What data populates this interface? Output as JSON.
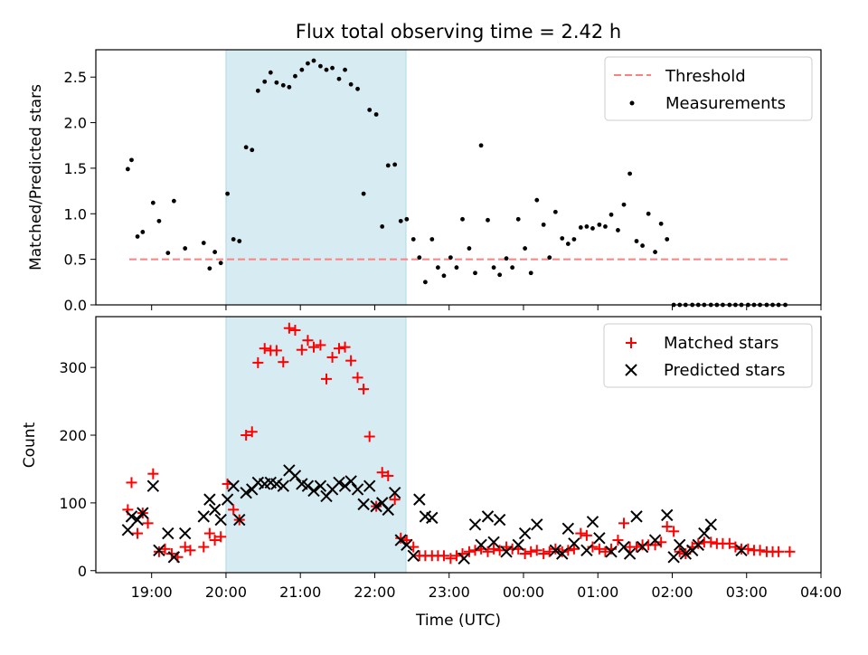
{
  "chart_data": [
    {
      "type": "scatter",
      "title": "Flux total observing time = 2.42 h",
      "xlabel": "",
      "ylabel": "Matched/Predicted stars",
      "ylim": [
        0,
        2.8
      ],
      "yticks": [
        0.0,
        0.5,
        1.0,
        1.5,
        2.0,
        2.5
      ],
      "ytick_labels": [
        "0.0",
        "0.5",
        "1.0",
        "1.5",
        "2.0",
        "2.5"
      ],
      "xlim_hours": [
        18.25,
        28.0
      ],
      "shaded_interval": [
        20.0,
        22.42
      ],
      "shade_color": "#add8e6",
      "threshold": {
        "name": "Threshold",
        "value": 0.5,
        "x_range": [
          18.7,
          27.58
        ],
        "color": "#ff7f7f"
      },
      "legend": {
        "placement": "top-right",
        "entries": [
          "Threshold",
          "Measurements"
        ]
      },
      "series": [
        {
          "name": "Measurements",
          "color": "#000000",
          "x": [
            18.68,
            18.73,
            18.81,
            18.88,
            19.02,
            19.1,
            19.22,
            19.3,
            19.45,
            19.7,
            19.78,
            19.85,
            19.93,
            20.02,
            20.1,
            20.18,
            20.27,
            20.35,
            20.43,
            20.52,
            20.6,
            20.68,
            20.77,
            20.85,
            20.93,
            21.02,
            21.1,
            21.18,
            21.27,
            21.35,
            21.43,
            21.52,
            21.6,
            21.68,
            21.77,
            21.85,
            21.93,
            22.02,
            22.1,
            22.18,
            22.27,
            22.35,
            22.43,
            22.52,
            22.6,
            22.68,
            22.77,
            22.85,
            22.93,
            23.02,
            23.1,
            23.18,
            23.27,
            23.35,
            23.43,
            23.52,
            23.6,
            23.68,
            23.77,
            23.85,
            23.93,
            24.02,
            24.1,
            24.18,
            24.27,
            24.35,
            24.43,
            24.52,
            24.6,
            24.68,
            24.77,
            24.85,
            24.93,
            25.02,
            25.1,
            25.18,
            25.27,
            25.35,
            25.43,
            25.52,
            25.6,
            25.68,
            25.77,
            25.85,
            25.93,
            26.02,
            26.1,
            26.18,
            26.27,
            26.35,
            26.43,
            26.52,
            26.6,
            26.68,
            26.77,
            26.85,
            26.93,
            27.02,
            27.1,
            27.18,
            27.27,
            27.35,
            27.43,
            27.52
          ],
          "y": [
            1.49,
            1.59,
            0.75,
            0.8,
            1.12,
            0.92,
            0.57,
            1.14,
            0.62,
            0.68,
            0.4,
            0.58,
            0.46,
            1.22,
            0.72,
            0.7,
            1.73,
            1.7,
            2.35,
            2.45,
            2.55,
            2.44,
            2.41,
            2.39,
            2.51,
            2.58,
            2.65,
            2.68,
            2.62,
            2.58,
            2.6,
            2.48,
            2.58,
            2.42,
            2.37,
            1.22,
            2.14,
            2.09,
            0.86,
            1.53,
            1.54,
            0.92,
            0.94,
            0.72,
            0.52,
            0.25,
            0.72,
            0.41,
            0.32,
            0.52,
            0.41,
            0.94,
            0.62,
            0.35,
            1.75,
            0.93,
            0.41,
            0.33,
            0.51,
            0.41,
            0.94,
            0.62,
            0.35,
            1.15,
            0.88,
            0.52,
            1.02,
            0.73,
            0.67,
            0.72,
            0.85,
            0.86,
            0.84,
            0.88,
            0.86,
            0.99,
            0.82,
            1.1,
            1.44,
            0.7,
            0.65,
            1.0,
            0.58,
            0.89,
            0.72,
            0.0,
            0.0,
            0.0,
            0.0,
            0.0,
            0.0,
            0.0,
            0.0,
            0.0,
            0.0,
            0.0,
            0.0,
            0.0,
            0.0,
            0.0,
            0.0,
            0.0,
            0.0,
            0.0
          ]
        }
      ]
    },
    {
      "type": "scatter",
      "title": "",
      "xlabel": "Time (UTC)",
      "ylabel": "Count",
      "ylim": [
        -3,
        375
      ],
      "yticks": [
        0,
        100,
        200,
        300
      ],
      "ytick_labels": [
        "0",
        "100",
        "200",
        "300"
      ],
      "xlim_hours": [
        18.25,
        28.0
      ],
      "xticks_hours": [
        19,
        20,
        21,
        22,
        23,
        24,
        25,
        26,
        27,
        28
      ],
      "xtick_labels": [
        "19:00",
        "20:00",
        "21:00",
        "22:00",
        "23:00",
        "00:00",
        "01:00",
        "02:00",
        "03:00",
        "04:00"
      ],
      "shaded_interval": [
        20.0,
        22.42
      ],
      "shade_color": "#add8e6",
      "legend": {
        "placement": "top-right",
        "entries": [
          "Matched stars",
          "Predicted stars"
        ]
      },
      "series": [
        {
          "name": "Matched stars",
          "marker": "+",
          "color": "#ff0000",
          "x": [
            18.68,
            18.73,
            18.81,
            18.88,
            18.95,
            19.02,
            19.1,
            19.18,
            19.27,
            19.35,
            19.45,
            19.52,
            19.7,
            19.78,
            19.85,
            19.93,
            20.02,
            20.1,
            20.18,
            20.27,
            20.35,
            20.43,
            20.52,
            20.6,
            20.68,
            20.77,
            20.85,
            20.93,
            21.02,
            21.1,
            21.18,
            21.27,
            21.35,
            21.43,
            21.52,
            21.6,
            21.68,
            21.77,
            21.85,
            21.93,
            22.02,
            22.1,
            22.18,
            22.27,
            22.35,
            22.43,
            22.52,
            22.6,
            22.68,
            22.77,
            22.85,
            22.93,
            23.02,
            23.1,
            23.18,
            23.27,
            23.35,
            23.43,
            23.52,
            23.6,
            23.68,
            23.77,
            23.85,
            23.93,
            24.02,
            24.1,
            24.18,
            24.27,
            24.35,
            24.43,
            24.52,
            24.6,
            24.68,
            24.77,
            24.85,
            24.93,
            25.02,
            25.1,
            25.18,
            25.27,
            25.35,
            25.43,
            25.52,
            25.6,
            25.68,
            25.77,
            25.85,
            25.93,
            26.02,
            26.1,
            26.18,
            26.27,
            26.35,
            26.43,
            26.52,
            26.6,
            26.68,
            26.77,
            26.85,
            26.93,
            27.02,
            27.1,
            27.18,
            27.27,
            27.35,
            27.43,
            27.58
          ],
          "y": [
            90,
            130,
            55,
            85,
            70,
            143,
            28,
            32,
            25,
            20,
            35,
            30,
            35,
            55,
            45,
            50,
            128,
            90,
            75,
            200,
            205,
            307,
            328,
            325,
            325,
            308,
            358,
            355,
            326,
            340,
            330,
            333,
            283,
            315,
            328,
            330,
            310,
            285,
            268,
            198,
            95,
            145,
            140,
            105,
            48,
            45,
            35,
            22,
            22,
            22,
            22,
            22,
            18,
            22,
            25,
            28,
            30,
            32,
            28,
            32,
            30,
            35,
            32,
            32,
            25,
            28,
            30,
            25,
            28,
            32,
            28,
            30,
            32,
            55,
            52,
            35,
            32,
            28,
            32,
            45,
            70,
            35,
            35,
            38,
            38,
            38,
            42,
            65,
            58,
            28,
            25,
            35,
            40,
            42,
            42,
            40,
            40,
            40,
            35,
            32,
            32,
            30,
            30,
            28,
            28,
            28,
            28
          ]
        },
        {
          "name": "Predicted stars",
          "marker": "x",
          "color": "#000000",
          "x": [
            18.68,
            18.73,
            18.81,
            18.88,
            19.02,
            19.1,
            19.22,
            19.3,
            19.45,
            19.7,
            19.78,
            19.85,
            19.93,
            20.02,
            20.1,
            20.18,
            20.27,
            20.35,
            20.43,
            20.52,
            20.6,
            20.68,
            20.77,
            20.85,
            20.93,
            21.02,
            21.1,
            21.18,
            21.27,
            21.35,
            21.43,
            21.52,
            21.6,
            21.68,
            21.77,
            21.85,
            21.93,
            22.02,
            22.1,
            22.18,
            22.27,
            22.35,
            22.43,
            22.52,
            22.6,
            22.68,
            22.77,
            23.2,
            23.35,
            23.43,
            23.52,
            23.6,
            23.68,
            23.77,
            23.93,
            24.02,
            24.18,
            24.43,
            24.52,
            24.6,
            24.68,
            24.85,
            24.93,
            25.02,
            25.18,
            25.35,
            25.43,
            25.52,
            25.6,
            25.77,
            25.93,
            26.02,
            26.1,
            26.18,
            26.27,
            26.35,
            26.43,
            26.52,
            26.93
          ],
          "y": [
            60,
            80,
            75,
            85,
            125,
            30,
            55,
            20,
            55,
            80,
            105,
            90,
            75,
            105,
            125,
            75,
            115,
            120,
            130,
            128,
            130,
            128,
            125,
            148,
            140,
            128,
            125,
            118,
            125,
            110,
            120,
            130,
            125,
            132,
            120,
            98,
            125,
            95,
            100,
            90,
            115,
            45,
            38,
            22,
            105,
            80,
            78,
            18,
            68,
            38,
            80,
            42,
            75,
            28,
            38,
            55,
            68,
            30,
            25,
            62,
            40,
            30,
            72,
            48,
            28,
            35,
            25,
            80,
            35,
            45,
            82,
            20,
            38,
            25,
            30,
            38,
            55,
            68,
            30
          ]
        }
      ]
    }
  ]
}
